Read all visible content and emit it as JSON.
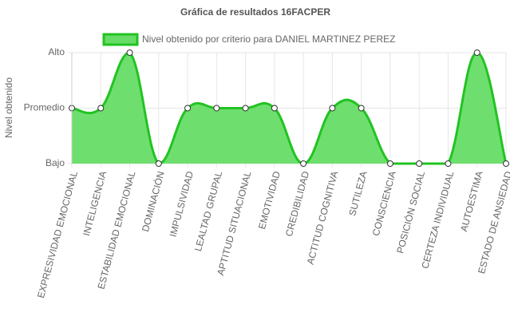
{
  "chart_data": {
    "type": "area",
    "title": "Gráfica de resultados 16FACPER",
    "ylabel": "Nivel obtenido",
    "categories": [
      "EXPRESIVIDAD EMOCIONAL",
      "INTELIGENCIA",
      "ESTABILIDAD EMOCIONAL",
      "DOMINACIÓN",
      "IMPULSIVIDAD",
      "LEALTAD GRUPAL",
      "APTITUD SITUACIONAL",
      "EMOTIVIDAD",
      "CREDIBILIDAD",
      "ACTITUD COGNITIVA",
      "SUTILEZA",
      "CONSCIENCIA",
      "POSICIÓN SOCIAL",
      "CERTEZA INDIVIDUAL",
      "AUTOESTIMA",
      "ESTADO DE ANSIEDAD"
    ],
    "series": [
      {
        "name": "Nivel obtenido por criterio para DANIEL MARTINEZ PEREZ",
        "color": "#22c322",
        "fill": "#66dd66",
        "values": [
          1,
          1,
          2,
          0,
          1,
          1,
          1,
          1,
          0,
          1,
          1,
          0,
          0,
          0,
          2,
          0
        ]
      }
    ],
    "ylim": [
      0,
      2
    ],
    "yticks": [
      {
        "value": 0,
        "label": "Bajo"
      },
      {
        "value": 1,
        "label": "Promedio"
      },
      {
        "value": 2,
        "label": "Alto"
      }
    ],
    "grid": true,
    "legend": "top"
  }
}
